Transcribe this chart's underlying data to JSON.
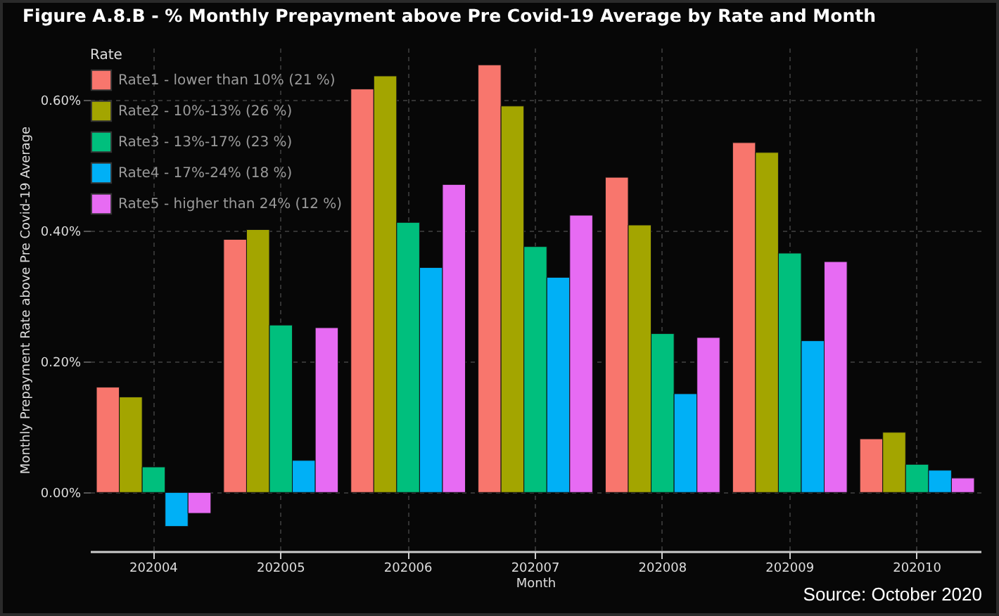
{
  "chart_data": {
    "type": "bar",
    "title": "Figure A.8.B - % Monthly Prepayment above Pre Covid-19 Average by Rate and Month",
    "xlabel": "Month",
    "ylabel": "Monthly Prepayment Rate above Pre Covid-19 Average",
    "legend_title": "Rate",
    "categories": [
      "202004",
      "202005",
      "202006",
      "202007",
      "202008",
      "202009",
      "202010"
    ],
    "series": [
      {
        "name": "Rate1 - lower than 10% (21 %)",
        "color": "#f8766d",
        "values": [
          0.161,
          0.387,
          0.617,
          0.654,
          0.482,
          0.535,
          0.082
        ]
      },
      {
        "name": "Rate2 - 10%-13% (26 %)",
        "color": "#a3a500",
        "values": [
          0.146,
          0.402,
          0.637,
          0.591,
          0.409,
          0.52,
          0.092
        ]
      },
      {
        "name": "Rate3 - 13%-17% (23 %)",
        "color": "#00bf7d",
        "values": [
          0.039,
          0.256,
          0.413,
          0.376,
          0.243,
          0.366,
          0.043
        ]
      },
      {
        "name": "Rate4 - 17%-24% (18 %)",
        "color": "#00b0f6",
        "values": [
          -0.052,
          0.049,
          0.344,
          0.329,
          0.151,
          0.232,
          0.034
        ]
      },
      {
        "name": "Rate5 - higher than 24% (12 %)",
        "color": "#e76bf3",
        "values": [
          -0.032,
          0.252,
          0.471,
          0.424,
          0.237,
          0.353,
          0.022
        ]
      }
    ],
    "ylim": [
      -0.09,
      0.68
    ],
    "yticks": [
      {
        "value": 0,
        "label": "0.00%"
      },
      {
        "value": 0.2,
        "label": "0.20%"
      },
      {
        "value": 0.4,
        "label": "0.40%"
      },
      {
        "value": 0.6,
        "label": "0.60%"
      }
    ],
    "grid": true,
    "legend": "top left",
    "annotations": [
      "Source: October 2020"
    ]
  }
}
